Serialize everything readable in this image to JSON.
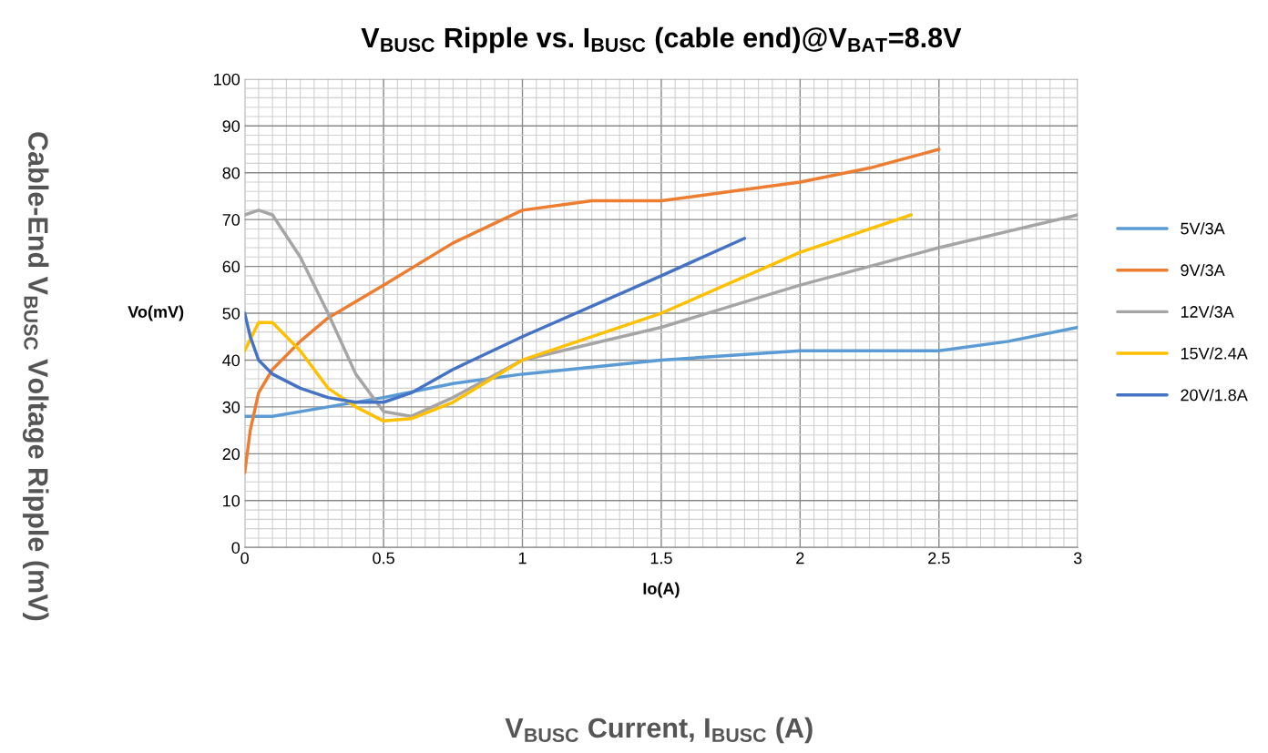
{
  "chart_data": {
    "type": "line",
    "title": "V$_{BUSC}$ Ripple vs. I$_{BUSC}$ (cable end)@V$_{BAT}$=8.8V",
    "xlabel": "Io(A)",
    "ylabel": "Vo(mV)",
    "annotations": [
      "Cable-End V$_{BUSC}$ Voltage Ripple (mV)",
      "V$_{BUSC}$ Current, I$_{BUSC}$ (A)"
    ],
    "xlim": [
      0,
      3
    ],
    "xticks": [
      0,
      0.5,
      1,
      1.5,
      2,
      2.5,
      3
    ],
    "ylim": [
      0,
      100
    ],
    "yticks": [
      0,
      10,
      20,
      30,
      40,
      50,
      60,
      70,
      80,
      90,
      100
    ],
    "grid": true,
    "legend": "right",
    "marker": "none",
    "line_style": "solid",
    "series": [
      {
        "name": "5V/3A",
        "color": "#5b9bd5",
        "x": [
          0,
          0.1,
          0.3,
          0.5,
          0.75,
          1,
          1.5,
          2,
          2.5,
          2.75,
          3
        ],
        "values": [
          28,
          28,
          30,
          32,
          35,
          37,
          40,
          42,
          42,
          44,
          47
        ]
      },
      {
        "name": "9V/3A",
        "color": "#ed7d31",
        "x": [
          0,
          0.02,
          0.05,
          0.1,
          0.2,
          0.3,
          0.5,
          0.75,
          1,
          1.25,
          1.5,
          1.75,
          2,
          2.25,
          2.5
        ],
        "values": [
          16,
          25,
          33,
          38,
          44,
          49,
          56,
          65,
          72,
          74,
          74,
          76,
          78,
          81,
          85
        ]
      },
      {
        "name": "12V/3A",
        "color": "#a5a5a5",
        "x": [
          0,
          0.05,
          0.1,
          0.2,
          0.3,
          0.4,
          0.5,
          0.6,
          0.75,
          1,
          1.5,
          2,
          2.5,
          3
        ],
        "values": [
          71,
          72,
          71,
          62,
          50,
          37,
          29,
          28,
          32,
          40,
          47,
          56,
          64,
          71
        ]
      },
      {
        "name": "15V/2.4A",
        "color": "#ffc000",
        "x": [
          0,
          0.05,
          0.1,
          0.2,
          0.3,
          0.4,
          0.5,
          0.6,
          0.75,
          1,
          1.5,
          2,
          2.4
        ],
        "values": [
          42,
          48,
          48,
          42,
          34,
          30,
          27,
          27.5,
          31,
          40,
          50,
          63,
          71
        ]
      },
      {
        "name": "20V/1.8A",
        "color": "#4472c4",
        "x": [
          0,
          0.02,
          0.05,
          0.1,
          0.2,
          0.3,
          0.4,
          0.5,
          0.6,
          0.75,
          1,
          1.5,
          1.8
        ],
        "values": [
          50,
          45,
          40,
          37,
          34,
          32,
          31,
          31,
          33,
          38,
          45,
          58,
          66
        ]
      }
    ]
  }
}
